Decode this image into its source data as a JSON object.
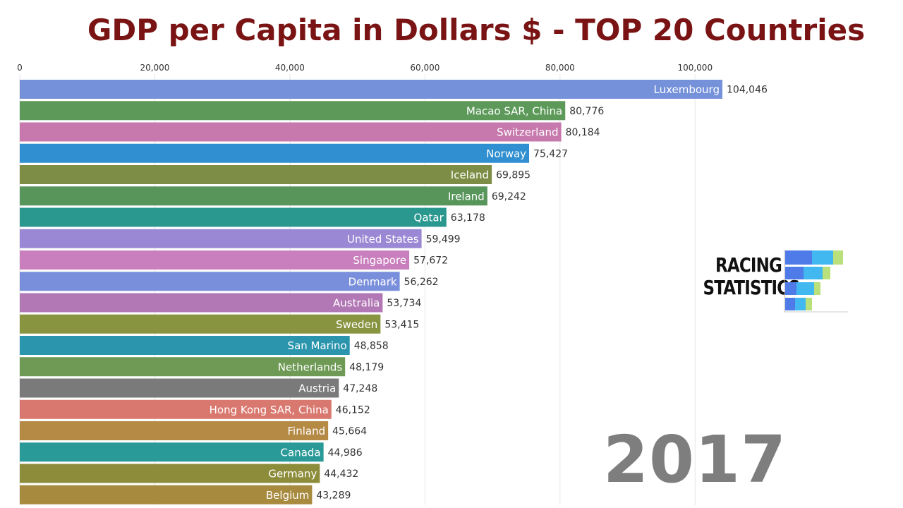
{
  "title": "GDP per Capita in Dollars $ - TOP 20 Countries",
  "year": "2017",
  "logo": {
    "line1": "RACING",
    "line2": "STATISTICS"
  },
  "chart_data": {
    "type": "bar",
    "orientation": "horizontal",
    "title": "GDP per Capita in Dollars $ - TOP 20 Countries",
    "xlim": [
      0,
      104046
    ],
    "xticks": [
      0,
      20000,
      40000,
      60000,
      80000,
      100000
    ],
    "xtick_labels": [
      "0",
      "20,000",
      "40,000",
      "60,000",
      "80,000",
      "100,000"
    ],
    "categories": [
      "Luxembourg",
      "Macao SAR, China",
      "Switzerland",
      "Norway",
      "Iceland",
      "Ireland",
      "Qatar",
      "United States",
      "Singapore",
      "Denmark",
      "Australia",
      "Sweden",
      "San Marino",
      "Netherlands",
      "Austria",
      "Hong Kong SAR, China",
      "Finland",
      "Canada",
      "Germany",
      "Belgium"
    ],
    "values": [
      104046,
      80776,
      80184,
      75427,
      69895,
      69242,
      63178,
      59499,
      57672,
      56262,
      53734,
      53415,
      48858,
      48179,
      47248,
      46152,
      45664,
      44986,
      44432,
      43289
    ],
    "value_labels": [
      "104,046",
      "80,776",
      "80,184",
      "75,427",
      "69,895",
      "69,242",
      "63,178",
      "59,499",
      "57,672",
      "56,262",
      "53,734",
      "53,415",
      "48,858",
      "48,179",
      "47,248",
      "46,152",
      "45,664",
      "44,986",
      "44,432",
      "43,289"
    ],
    "colors": [
      "#7491d9",
      "#5d9a5a",
      "#c779ad",
      "#2f8fd0",
      "#7e8d45",
      "#58955b",
      "#2b9890",
      "#9a88d4",
      "#c97fbd",
      "#7a8fdb",
      "#b277b5",
      "#889440",
      "#2a95ad",
      "#6e9a55",
      "#7a7a7a",
      "#d9786f",
      "#b58a45",
      "#2a9a98",
      "#8c8c3a",
      "#a78a3e"
    ]
  }
}
